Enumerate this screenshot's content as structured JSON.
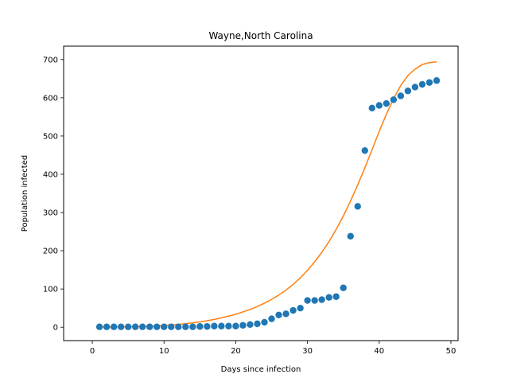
{
  "chart_data": {
    "type": "scatter",
    "title": "Wayne,North Carolina",
    "xlabel": "Days since infection",
    "ylabel": "Population infected",
    "xlim": [
      -4,
      51
    ],
    "ylim": [
      -35,
      735
    ],
    "xticks": [
      0,
      10,
      20,
      30,
      40,
      50
    ],
    "yticks": [
      0,
      100,
      200,
      300,
      400,
      500,
      600,
      700
    ],
    "grid": false,
    "colors": {
      "points": "#1f77b4",
      "fit": "#ff7f0e"
    },
    "series": [
      {
        "kind": "scatter",
        "x": [
          1,
          2,
          3,
          4,
          5,
          6,
          7,
          8,
          9,
          10,
          11,
          12,
          13,
          14,
          15,
          16,
          17,
          18,
          19,
          20,
          21,
          22,
          23,
          24,
          25,
          26,
          27,
          28,
          29,
          30,
          31,
          32,
          33,
          34,
          35,
          36,
          37,
          38,
          39,
          40,
          41,
          42,
          43,
          44,
          45,
          46,
          47,
          48
        ],
        "y": [
          1,
          1,
          1,
          1,
          1,
          1,
          1,
          1,
          1,
          1,
          1,
          1,
          1,
          1,
          2,
          2,
          3,
          3,
          3,
          3,
          5,
          7,
          9,
          13,
          22,
          32,
          35,
          44,
          50,
          70,
          70,
          72,
          78,
          80,
          103,
          238,
          316,
          462,
          573,
          580,
          585,
          595,
          605,
          618,
          628,
          635,
          640,
          645
        ]
      },
      {
        "kind": "line",
        "x": [
          1,
          2,
          3,
          4,
          5,
          6,
          7,
          8,
          9,
          10,
          11,
          12,
          13,
          14,
          15,
          16,
          17,
          18,
          19,
          20,
          21,
          22,
          23,
          24,
          25,
          26,
          27,
          28,
          29,
          30,
          31,
          32,
          33,
          34,
          35,
          36,
          37,
          38,
          39,
          40,
          41,
          42,
          43,
          44,
          45,
          46,
          47,
          48
        ],
        "y": [
          0.5,
          0.7,
          0.9,
          1.1,
          1.4,
          1.8,
          2.3,
          3,
          3.8,
          4.8,
          6,
          7.5,
          9.3,
          11.5,
          14,
          17,
          20.5,
          24.5,
          29,
          34,
          40,
          46.5,
          54,
          63,
          73,
          84,
          97,
          112,
          129,
          149,
          171,
          196,
          224,
          256,
          291,
          330,
          372,
          417,
          464,
          512,
          557,
          598,
          632,
          658,
          675,
          687,
          692,
          694
        ]
      }
    ]
  }
}
